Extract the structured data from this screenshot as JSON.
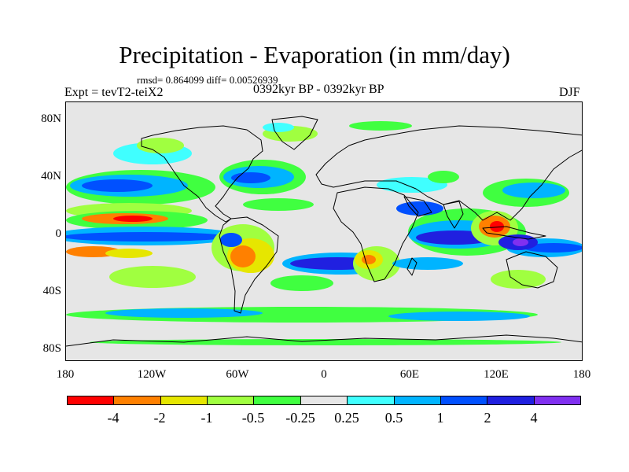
{
  "title": "Precipitation - Evaporation (in mm/day)",
  "stats": "rmsd= 0.864099 diff= 0.00526939",
  "experiment": "Expt = tevT2-teiX2",
  "period": "0392kyr BP - 0392kyr BP",
  "season": "DJF",
  "axes": {
    "y_ticks": [
      "80N",
      "40N",
      "0",
      "40S",
      "80S"
    ],
    "x_ticks": [
      "180",
      "120W",
      "60W",
      "0",
      "60E",
      "120E",
      "180"
    ]
  },
  "colorbar": {
    "colors": [
      "#ff0000",
      "#ff8000",
      "#e6e600",
      "#a0ff40",
      "#40ff40",
      "#e6e6e6",
      "#40ffff",
      "#00b4ff",
      "#0050ff",
      "#2020e0",
      "#8030f0"
    ],
    "labels": [
      "-4",
      "-2",
      "-1",
      "-0.5",
      "-0.25",
      "0.25",
      "0.5",
      "1",
      "2",
      "4"
    ]
  }
}
